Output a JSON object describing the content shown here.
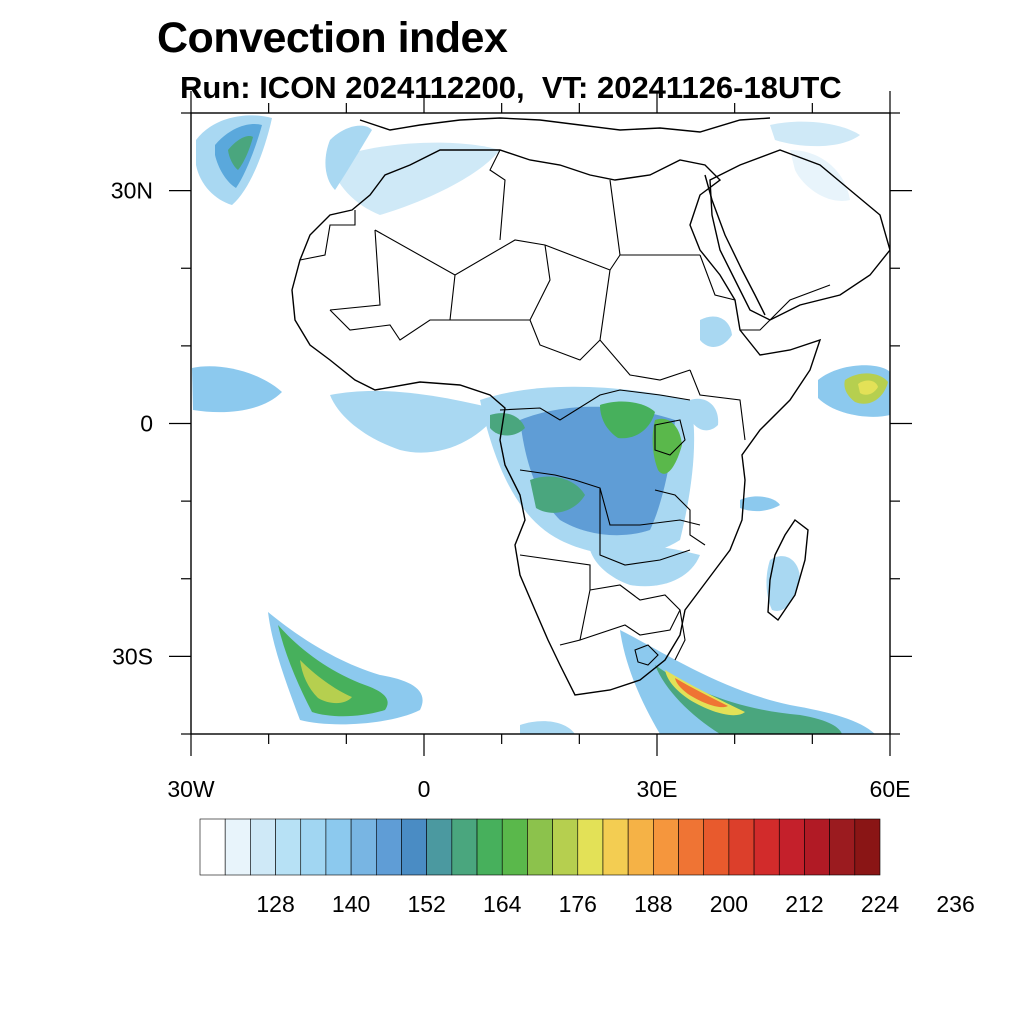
{
  "title": "Convection index",
  "subtitle": "Run: ICON 2024112200,  VT: 20241126-18UTC",
  "map": {
    "projection": "cylindrical equidistant",
    "lon_range": [
      -30,
      60
    ],
    "lat_range": [
      -40,
      40
    ],
    "lon_ticks": [
      {
        "value": -30,
        "label": "30W"
      },
      {
        "value": 0,
        "label": "0"
      },
      {
        "value": 30,
        "label": "30E"
      },
      {
        "value": 60,
        "label": "60E"
      }
    ],
    "lat_ticks": [
      {
        "value": 30,
        "label": "30N"
      },
      {
        "value": 0,
        "label": "0"
      },
      {
        "value": -30,
        "label": "30S"
      }
    ]
  },
  "colorbar": {
    "label_values": [
      "128",
      "140",
      "152",
      "164",
      "176",
      "188",
      "200",
      "212",
      "224",
      "236"
    ],
    "colors": [
      "#ffffff",
      "#e8f4fb",
      "#cfe9f7",
      "#b7e1f5",
      "#a1d6f2",
      "#8cc9ee",
      "#78b5e3",
      "#5f9dd6",
      "#4a8cc4",
      "#4b99a0",
      "#4aa67e",
      "#47b05c",
      "#5ab84b",
      "#8cc24c",
      "#b6cf4f",
      "#e3e157",
      "#f3cd52",
      "#f5b246",
      "#f5963d",
      "#ef7434",
      "#e85a2d",
      "#dc3f2b",
      "#d22b2b",
      "#c4202b",
      "#b11a25",
      "#9b1b1f",
      "#8a1515"
    ]
  }
}
